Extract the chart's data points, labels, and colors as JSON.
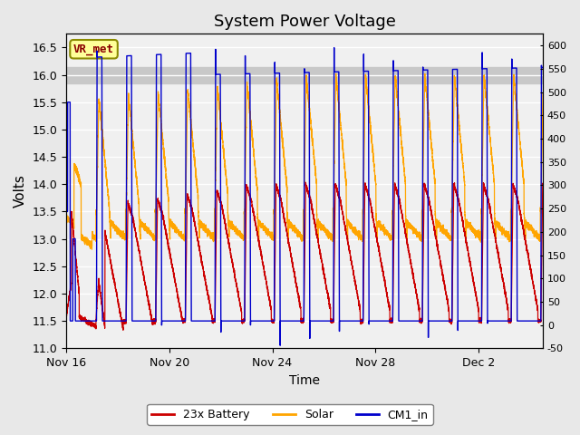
{
  "title": "System Power Voltage",
  "xlabel": "Time",
  "ylabel_left": "Volts",
  "ylim_left": [
    11.0,
    16.75
  ],
  "ylim_right": [
    -50,
    625
  ],
  "yticks_left": [
    11.0,
    11.5,
    12.0,
    12.5,
    13.0,
    13.5,
    14.0,
    14.5,
    15.0,
    15.5,
    16.0,
    16.5
  ],
  "yticks_right": [
    -50,
    0,
    50,
    100,
    150,
    200,
    250,
    300,
    350,
    400,
    450,
    500,
    550,
    600
  ],
  "xtick_positions": [
    0,
    4,
    8,
    12,
    16
  ],
  "xtick_labels": [
    "Nov 16",
    "Nov 20",
    "Nov 24",
    "Nov 28",
    "Dec 2"
  ],
  "annotation_text": "VR_met",
  "annotation_color": "#8B0000",
  "annotation_bg": "#FFFF99",
  "annotation_border": "#8B8B00",
  "battery_color": "#CC0000",
  "solar_color": "#FFA500",
  "cm1_color": "#0000CC",
  "fig_facecolor": "#E8E8E8",
  "ax_facecolor": "#F0F0F0",
  "shaded_ymin": 15.85,
  "shaded_ymax": 16.15,
  "shaded_color": "#C8C8C8",
  "legend_battery": "23x Battery",
  "legend_solar": "Solar",
  "legend_cm1": "CM1_in",
  "total_days": 18.5,
  "cycle_period": 1.15
}
